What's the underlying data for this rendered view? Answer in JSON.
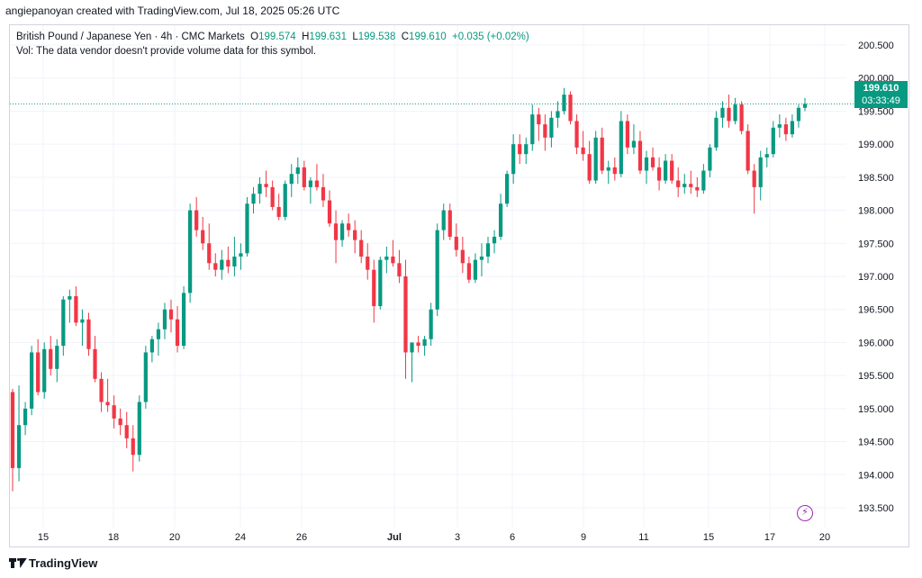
{
  "header": {
    "author_line": "angiepanoyan created with TradingView.com, Jul 18, 2025 05:26 UTC"
  },
  "legend": {
    "instrument": "British Pound / Japanese Yen · 4h · CMC Markets",
    "o_label": "O",
    "o_value": "199.574",
    "h_label": "H",
    "h_value": "199.631",
    "l_label": "L",
    "l_value": "199.538",
    "c_label": "C",
    "c_value": "199.610",
    "change": "+0.035 (+0.02%)",
    "volume_note": "Vol: The data vendor doesn't provide volume data for this symbol."
  },
  "price_tag": {
    "price": "199.610",
    "countdown": "03:33:49"
  },
  "footer": {
    "brand": "TradingView"
  },
  "colors": {
    "up": "#089981",
    "down": "#f23645",
    "last_price": "#089981",
    "grid": "#f0f3fa"
  },
  "icons": {
    "alert": "lightning-bolt-icon",
    "logo": "tradingview-logo-icon"
  },
  "chart_data": {
    "type": "candlestick",
    "ylim": [
      193.2,
      200.8
    ],
    "y_ticks": [
      "200.500",
      "200.000",
      "199.500",
      "199.000",
      "198.500",
      "198.000",
      "197.500",
      "197.000",
      "196.500",
      "196.000",
      "195.500",
      "195.000",
      "194.500",
      "194.000",
      "193.500"
    ],
    "x_ticks": [
      "15",
      "18",
      "20",
      "24",
      "26",
      "Jul",
      "3",
      "6",
      "9",
      "11",
      "15",
      "17",
      "20"
    ],
    "last_price": 199.61,
    "candles": [
      [
        195.25,
        195.3,
        193.75,
        194.1
      ],
      [
        194.1,
        195.35,
        193.9,
        194.75
      ],
      [
        194.75,
        195.1,
        194.6,
        195.0
      ],
      [
        195.0,
        195.95,
        194.9,
        195.85
      ],
      [
        195.85,
        196.05,
        195.2,
        195.25
      ],
      [
        195.25,
        196.0,
        195.15,
        195.9
      ],
      [
        195.9,
        196.1,
        195.5,
        195.6
      ],
      [
        195.6,
        196.05,
        195.4,
        195.95
      ],
      [
        195.95,
        196.7,
        195.8,
        196.65
      ],
      [
        196.65,
        196.8,
        196.3,
        196.7
      ],
      [
        196.7,
        196.85,
        196.25,
        196.3
      ],
      [
        196.3,
        196.5,
        195.95,
        196.35
      ],
      [
        196.35,
        196.45,
        195.8,
        195.9
      ],
      [
        195.9,
        196.1,
        195.4,
        195.45
      ],
      [
        195.45,
        195.55,
        194.95,
        195.1
      ],
      [
        195.1,
        195.45,
        194.95,
        195.05
      ],
      [
        195.05,
        195.2,
        194.7,
        194.85
      ],
      [
        194.85,
        195.0,
        194.6,
        194.75
      ],
      [
        194.75,
        194.95,
        194.4,
        194.55
      ],
      [
        194.55,
        194.75,
        194.05,
        194.3
      ],
      [
        194.3,
        195.2,
        194.2,
        195.1
      ],
      [
        195.1,
        195.95,
        195.0,
        195.85
      ],
      [
        195.85,
        196.1,
        195.7,
        196.05
      ],
      [
        196.05,
        196.3,
        195.8,
        196.2
      ],
      [
        196.2,
        196.6,
        196.05,
        196.5
      ],
      [
        196.5,
        196.65,
        196.15,
        196.35
      ],
      [
        196.35,
        196.55,
        195.85,
        195.95
      ],
      [
        195.95,
        196.85,
        195.9,
        196.75
      ],
      [
        196.75,
        198.1,
        196.6,
        198.0
      ],
      [
        198.0,
        198.2,
        197.6,
        197.7
      ],
      [
        197.7,
        197.9,
        197.4,
        197.5
      ],
      [
        197.5,
        197.8,
        197.1,
        197.2
      ],
      [
        197.2,
        197.35,
        197.0,
        197.1
      ],
      [
        197.1,
        197.4,
        196.95,
        197.25
      ],
      [
        197.25,
        197.45,
        197.05,
        197.15
      ],
      [
        197.15,
        197.6,
        197.0,
        197.3
      ],
      [
        197.3,
        197.5,
        197.1,
        197.35
      ],
      [
        197.35,
        198.2,
        197.3,
        198.1
      ],
      [
        198.1,
        198.35,
        197.95,
        198.25
      ],
      [
        198.25,
        198.5,
        198.1,
        198.4
      ],
      [
        198.4,
        198.6,
        198.2,
        198.35
      ],
      [
        198.35,
        198.45,
        198.0,
        198.05
      ],
      [
        198.05,
        198.25,
        197.85,
        197.9
      ],
      [
        197.9,
        198.45,
        197.85,
        198.4
      ],
      [
        198.4,
        198.7,
        198.2,
        198.55
      ],
      [
        198.55,
        198.8,
        198.4,
        198.65
      ],
      [
        198.65,
        198.75,
        198.3,
        198.35
      ],
      [
        198.35,
        198.5,
        198.1,
        198.45
      ],
      [
        198.45,
        198.7,
        198.3,
        198.35
      ],
      [
        198.35,
        198.55,
        198.05,
        198.15
      ],
      [
        198.15,
        198.3,
        197.75,
        197.8
      ],
      [
        197.8,
        198.0,
        197.2,
        197.55
      ],
      [
        197.55,
        197.85,
        197.45,
        197.8
      ],
      [
        197.8,
        197.95,
        197.6,
        197.7
      ],
      [
        197.7,
        197.85,
        197.35,
        197.55
      ],
      [
        197.55,
        197.7,
        197.2,
        197.3
      ],
      [
        197.3,
        197.5,
        196.95,
        197.1
      ],
      [
        197.1,
        197.25,
        196.3,
        196.55
      ],
      [
        196.55,
        197.3,
        196.5,
        197.25
      ],
      [
        197.25,
        197.45,
        197.05,
        197.3
      ],
      [
        197.3,
        197.55,
        197.15,
        197.2
      ],
      [
        197.2,
        197.4,
        196.9,
        197.0
      ],
      [
        197.0,
        197.25,
        195.45,
        195.85
      ],
      [
        195.85,
        196.0,
        195.4,
        196.0
      ],
      [
        196.0,
        196.1,
        195.85,
        195.95
      ],
      [
        195.95,
        196.1,
        195.8,
        196.05
      ],
      [
        196.05,
        196.6,
        195.95,
        196.5
      ],
      [
        196.5,
        197.8,
        196.4,
        197.7
      ],
      [
        197.7,
        198.1,
        197.55,
        198.0
      ],
      [
        198.0,
        198.1,
        197.55,
        197.6
      ],
      [
        197.6,
        197.8,
        197.3,
        197.4
      ],
      [
        197.4,
        197.6,
        197.05,
        197.2
      ],
      [
        197.2,
        197.3,
        196.9,
        196.95
      ],
      [
        196.95,
        197.35,
        196.9,
        197.25
      ],
      [
        197.25,
        197.5,
        197.0,
        197.3
      ],
      [
        197.3,
        197.6,
        197.2,
        197.5
      ],
      [
        197.5,
        197.7,
        197.35,
        197.6
      ],
      [
        197.6,
        198.25,
        197.55,
        198.1
      ],
      [
        198.1,
        198.6,
        198.05,
        198.55
      ],
      [
        198.55,
        199.15,
        198.4,
        199.0
      ],
      [
        199.0,
        199.15,
        198.7,
        198.85
      ],
      [
        198.85,
        199.1,
        198.7,
        199.0
      ],
      [
        199.0,
        199.6,
        198.9,
        199.45
      ],
      [
        199.45,
        199.55,
        199.05,
        199.3
      ],
      [
        199.3,
        199.45,
        198.9,
        199.1
      ],
      [
        199.1,
        199.5,
        198.95,
        199.4
      ],
      [
        199.4,
        199.65,
        199.25,
        199.5
      ],
      [
        199.5,
        199.85,
        199.45,
        199.75
      ],
      [
        199.75,
        199.8,
        199.3,
        199.35
      ],
      [
        199.35,
        199.45,
        198.85,
        198.95
      ],
      [
        198.95,
        199.2,
        198.75,
        198.85
      ],
      [
        198.85,
        199.05,
        198.4,
        198.45
      ],
      [
        198.45,
        199.2,
        198.4,
        199.1
      ],
      [
        199.1,
        199.25,
        198.55,
        198.6
      ],
      [
        198.6,
        198.75,
        198.4,
        198.65
      ],
      [
        198.65,
        198.8,
        198.45,
        198.55
      ],
      [
        198.55,
        199.5,
        198.5,
        199.35
      ],
      [
        199.35,
        199.45,
        198.85,
        198.95
      ],
      [
        198.95,
        199.3,
        198.85,
        199.05
      ],
      [
        199.05,
        199.2,
        198.55,
        198.6
      ],
      [
        198.6,
        198.9,
        198.4,
        198.8
      ],
      [
        198.8,
        198.95,
        198.6,
        198.65
      ],
      [
        198.65,
        198.8,
        198.3,
        198.45
      ],
      [
        198.45,
        198.85,
        198.4,
        198.75
      ],
      [
        198.75,
        198.85,
        198.4,
        198.45
      ],
      [
        198.45,
        198.65,
        198.2,
        198.35
      ],
      [
        198.35,
        198.55,
        198.25,
        198.4
      ],
      [
        198.4,
        198.6,
        198.25,
        198.35
      ],
      [
        198.35,
        198.5,
        198.2,
        198.3
      ],
      [
        198.3,
        198.7,
        198.25,
        198.6
      ],
      [
        198.6,
        199.0,
        198.5,
        198.95
      ],
      [
        198.95,
        199.5,
        198.9,
        199.4
      ],
      [
        199.4,
        199.65,
        199.25,
        199.55
      ],
      [
        199.55,
        199.75,
        199.25,
        199.35
      ],
      [
        199.35,
        199.7,
        199.3,
        199.6
      ],
      [
        199.6,
        199.65,
        199.15,
        199.2
      ],
      [
        199.2,
        199.3,
        198.55,
        198.6
      ],
      [
        198.6,
        198.7,
        197.95,
        198.35
      ],
      [
        198.35,
        198.9,
        198.15,
        198.8
      ],
      [
        198.8,
        198.95,
        198.65,
        198.85
      ],
      [
        198.85,
        199.35,
        198.8,
        199.25
      ],
      [
        199.25,
        199.45,
        199.1,
        199.3
      ],
      [
        199.3,
        199.4,
        199.05,
        199.15
      ],
      [
        199.15,
        199.45,
        199.1,
        199.35
      ],
      [
        199.35,
        199.6,
        199.25,
        199.55
      ],
      [
        199.55,
        199.7,
        199.5,
        199.61
      ]
    ]
  }
}
